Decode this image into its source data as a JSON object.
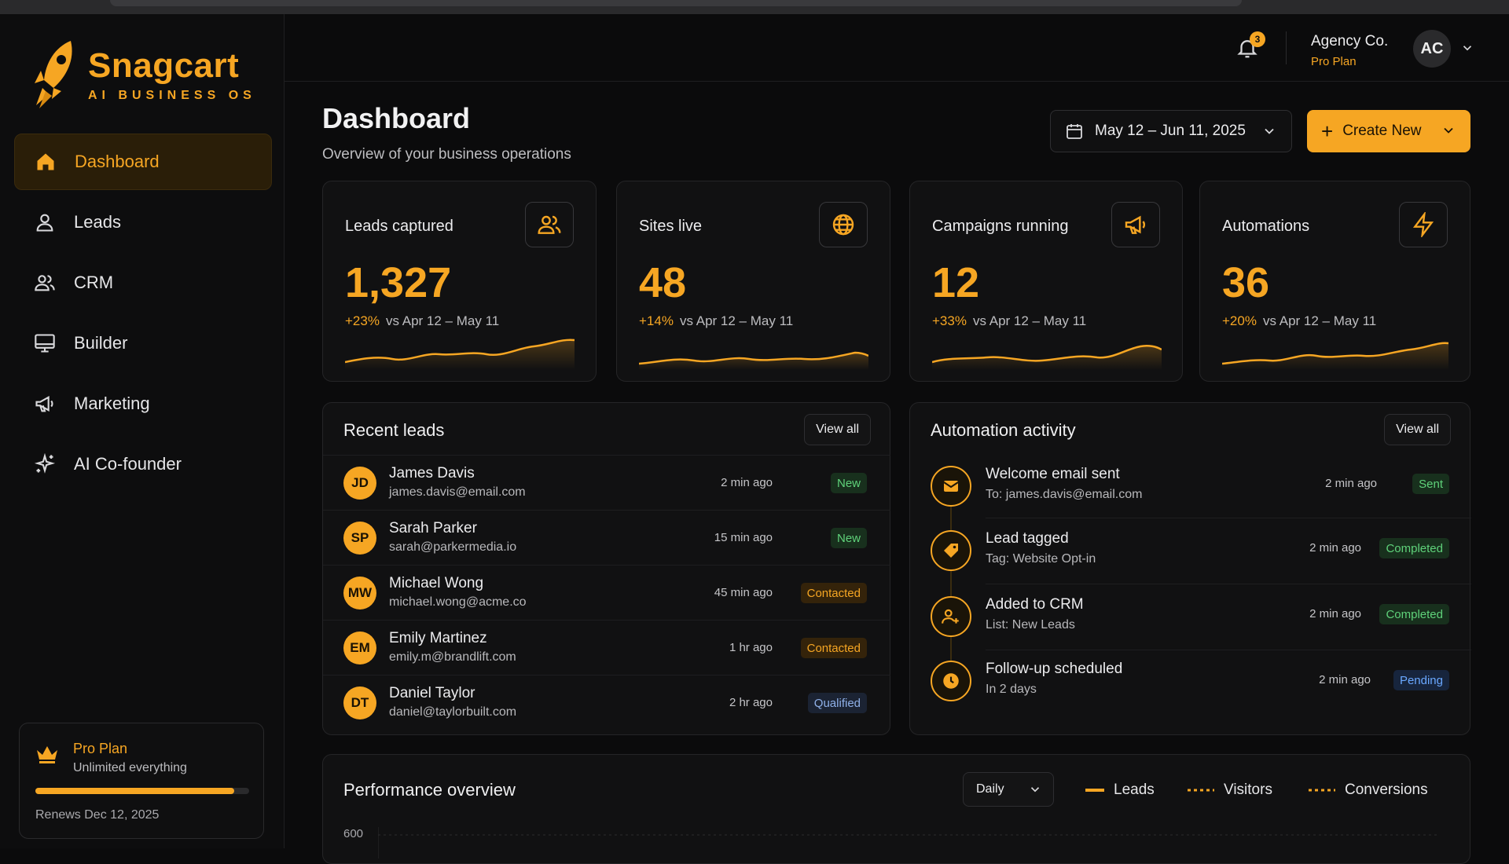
{
  "brand": {
    "name": "Snagcart",
    "tagline": "AI BUSINESS OS",
    "accent": "#f6a623"
  },
  "sidebar": {
    "items": [
      {
        "label": "Dashboard",
        "icon": "home-icon"
      },
      {
        "label": "Leads",
        "icon": "user-icon"
      },
      {
        "label": "CRM",
        "icon": "users-icon"
      },
      {
        "label": "Builder",
        "icon": "monitor-icon"
      },
      {
        "label": "Marketing",
        "icon": "megaphone-icon"
      },
      {
        "label": "AI Co-founder",
        "icon": "sparkles-icon"
      }
    ],
    "plan": {
      "name": "Pro Plan",
      "desc": "Unlimited everything",
      "progress": 0.93,
      "renews": "Renews Dec 12, 2025"
    }
  },
  "header": {
    "notifications": "3",
    "org_name": "Agency Co.",
    "org_plan": "Pro Plan",
    "avatar": "AC"
  },
  "page": {
    "title": "Dashboard",
    "subtitle": "Overview of your business operations",
    "date_range": "May 12 – Jun 11, 2025",
    "create_label": "Create New"
  },
  "stats": [
    {
      "label": "Leads captured",
      "value": "1,327",
      "pct": "+23%",
      "compare": "vs Apr 12 – May 11",
      "icon": "users-icon"
    },
    {
      "label": "Sites live",
      "value": "48",
      "pct": "+14%",
      "compare": "vs Apr 12 – May 11",
      "icon": "globe-icon"
    },
    {
      "label": "Campaigns running",
      "value": "12",
      "pct": "+33%",
      "compare": "vs Apr 12 – May 11",
      "icon": "megaphone-icon"
    },
    {
      "label": "Automations",
      "value": "36",
      "pct": "+20%",
      "compare": "vs Apr 12 – May 11",
      "icon": "bolt-icon"
    }
  ],
  "recent_leads": {
    "title": "Recent leads",
    "view_all": "View all",
    "rows": [
      {
        "initials": "JD",
        "name": "James Davis",
        "email": "james.davis@email.com",
        "time": "2 min ago",
        "status": "New"
      },
      {
        "initials": "SP",
        "name": "Sarah Parker",
        "email": "sarah@parkermedia.io",
        "time": "15 min ago",
        "status": "New"
      },
      {
        "initials": "MW",
        "name": "Michael Wong",
        "email": "michael.wong@acme.co",
        "time": "45 min ago",
        "status": "Contacted"
      },
      {
        "initials": "EM",
        "name": "Emily Martinez",
        "email": "emily.m@brandlift.com",
        "time": "1 hr ago",
        "status": "Contacted"
      },
      {
        "initials": "DT",
        "name": "Daniel Taylor",
        "email": "daniel@taylorbuilt.com",
        "time": "2 hr ago",
        "status": "Qualified"
      }
    ]
  },
  "automation": {
    "title": "Automation activity",
    "view_all": "View all",
    "rows": [
      {
        "title": "Welcome email sent",
        "desc": "To: james.davis@email.com",
        "time": "2 min ago",
        "status": "Sent",
        "icon": "mail-icon"
      },
      {
        "title": "Lead tagged",
        "desc": "Tag: Website Opt-in",
        "time": "2 min ago",
        "status": "Completed",
        "icon": "tag-icon"
      },
      {
        "title": "Added to CRM",
        "desc": "List: New Leads",
        "time": "2 min ago",
        "status": "Completed",
        "icon": "user-add-icon"
      },
      {
        "title": "Follow-up scheduled",
        "desc": "In 2 days",
        "time": "2 min ago",
        "status": "Pending",
        "icon": "clock-icon"
      }
    ]
  },
  "performance": {
    "title": "Performance overview",
    "interval": "Daily",
    "legend": [
      "Leads",
      "Visitors",
      "Conversions"
    ],
    "y_top_tick": "600"
  }
}
